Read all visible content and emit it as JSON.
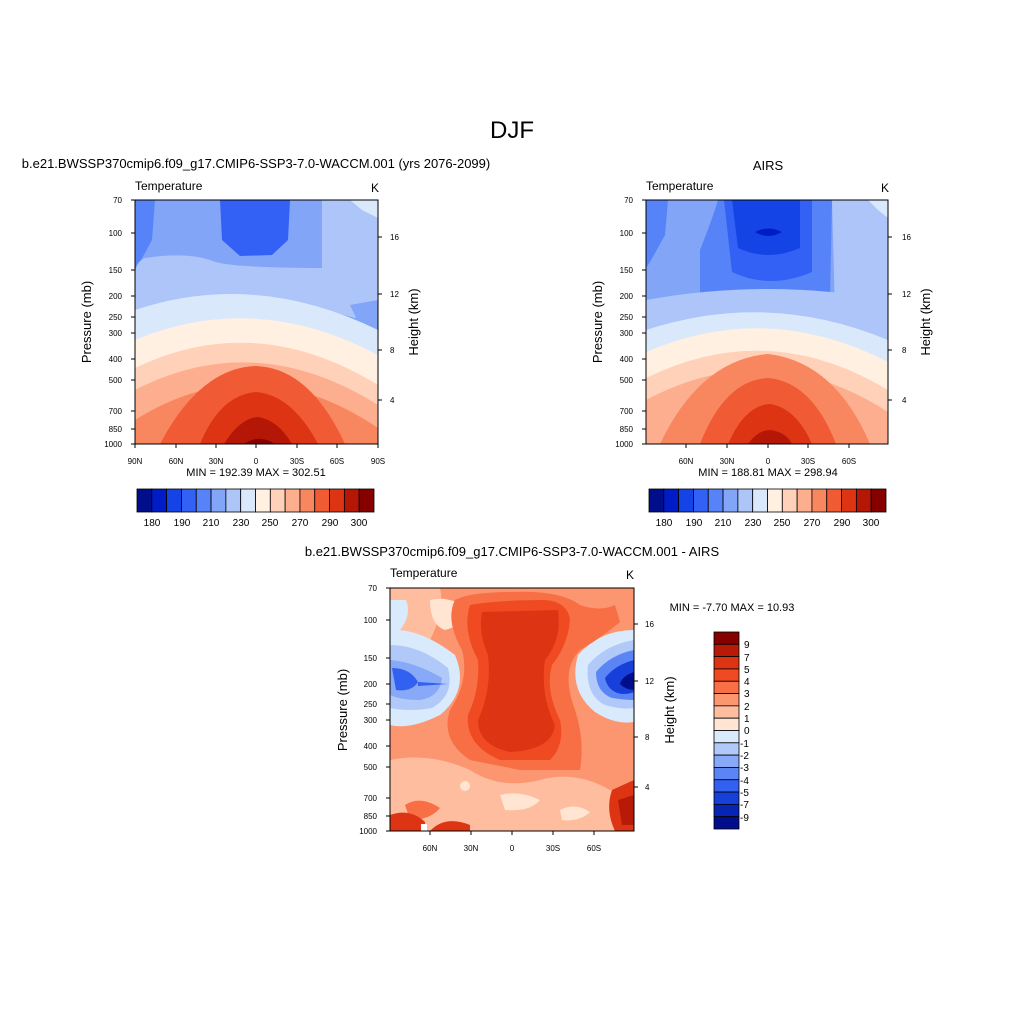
{
  "figure": {
    "title": "DJF"
  },
  "chart_data": [
    {
      "type": "heatmap",
      "title": "b.e21.BWSSP370cmip6.f09_g17.CMIP6-SSP3-7.0-WACCM.001 (yrs 2076-2099)",
      "left_label": "Temperature",
      "units": "K",
      "ylabel": "Pressure (mb)",
      "ylabel_right": "Height (km)",
      "x_ticks": [
        "90N",
        "60N",
        "30N",
        "0",
        "30S",
        "60S",
        "90S"
      ],
      "y_ticks": [
        "70",
        "100",
        "150",
        "200",
        "250",
        "300",
        "400",
        "500",
        "700",
        "850",
        "1000"
      ],
      "height_ticks": [
        "16",
        "12",
        "8",
        "4"
      ],
      "stats": "MIN = 192.39  MAX = 302.51",
      "colorbar_labels": [
        "180",
        "190",
        "210",
        "230",
        "250",
        "270",
        "290",
        "300"
      ]
    },
    {
      "type": "heatmap",
      "title": "AIRS",
      "left_label": "Temperature",
      "units": "K",
      "ylabel": "Pressure (mb)",
      "ylabel_right": "Height (km)",
      "x_ticks": [
        "60N",
        "30N",
        "0",
        "30S",
        "60S"
      ],
      "y_ticks": [
        "70",
        "100",
        "150",
        "200",
        "250",
        "300",
        "400",
        "500",
        "700",
        "850",
        "1000"
      ],
      "height_ticks": [
        "16",
        "12",
        "8",
        "4"
      ],
      "stats": "MIN = 188.81  MAX = 298.94",
      "colorbar_labels": [
        "180",
        "190",
        "210",
        "230",
        "250",
        "270",
        "290",
        "300"
      ]
    },
    {
      "type": "heatmap",
      "title": "b.e21.BWSSP370cmip6.f09_g17.CMIP6-SSP3-7.0-WACCM.001 - AIRS",
      "left_label": "Temperature",
      "units": "K",
      "ylabel": "Pressure (mb)",
      "ylabel_right": "Height (km)",
      "x_ticks": [
        "60N",
        "30N",
        "0",
        "30S",
        "60S"
      ],
      "y_ticks": [
        "70",
        "100",
        "150",
        "200",
        "250",
        "300",
        "400",
        "500",
        "700",
        "850",
        "1000"
      ],
      "height_ticks": [
        "16",
        "12",
        "8",
        "4"
      ],
      "stats": "MIN =  -7.70  MAX =  10.93",
      "colorbar_labels": [
        "9",
        "7",
        "5",
        "4",
        "3",
        "2",
        "1",
        "0",
        "-1",
        "-2",
        "-3",
        "-4",
        "-5",
        "-7",
        "-9"
      ]
    }
  ],
  "colors": {
    "abs_scale": [
      "#000e8c",
      "#001cc8",
      "#1544e6",
      "#3361f5",
      "#5683f7",
      "#82a5f7",
      "#adc5f9",
      "#d9e9fb",
      "#fff0e2",
      "#ffd1b8",
      "#fcae8e",
      "#f8875f",
      "#f05a35",
      "#dd3413",
      "#b51707",
      "#860000"
    ],
    "diff_scale": [
      "#860000",
      "#b81a08",
      "#dd3413",
      "#f04a22",
      "#f86e45",
      "#fc9670",
      "#ffbd9f",
      "#ffe5d2",
      "#d9eafc",
      "#b0c9f9",
      "#87a9f7",
      "#5b85f5",
      "#3260f0",
      "#1740da",
      "#0724b4",
      "#000e8c"
    ]
  }
}
